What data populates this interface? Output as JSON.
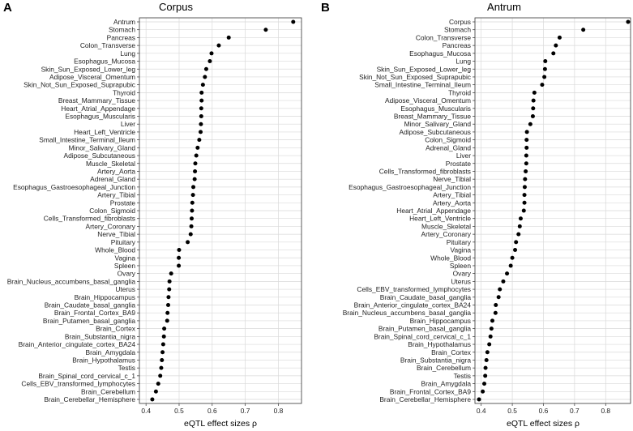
{
  "figure": {
    "panels": [
      {
        "letter": "A",
        "title": "Corpus"
      },
      {
        "letter": "B",
        "title": "Antrum"
      }
    ]
  },
  "chart_data": [
    {
      "type": "scatter",
      "panel": "A",
      "title": "Corpus",
      "xlabel": "eQTL effect sizes ρ",
      "ylabel": "",
      "xlim": [
        0.38,
        0.87
      ],
      "xticks": [
        "0.4",
        "0.5",
        "0.6",
        "0.7",
        "0.8"
      ],
      "xtick_values": [
        0.4,
        0.5,
        0.6,
        0.7,
        0.8
      ],
      "grid": true,
      "categories": [
        "Antrum",
        "Stomach",
        "Pancreas",
        "Colon_Transverse",
        "Lung",
        "Esophagus_Mucosa",
        "Skin_Sun_Exposed_Lower_leg",
        "Adipose_Visceral_Omentum",
        "Skin_Not_Sun_Exposed_Suprapubic",
        "Thyroid",
        "Breast_Mammary_Tissue",
        "Heart_Atrial_Appendage",
        "Esophagus_Muscularis",
        "Liver",
        "Heart_Left_Ventricle",
        "Small_Intestine_Terminal_Ileum",
        "Minor_Salivary_Gland",
        "Adipose_Subcutaneous",
        "Muscle_Skeletal",
        "Artery_Aorta",
        "Adrenal_Gland",
        "Esophagus_Gastroesophageal_Junction",
        "Artery_Tibial",
        "Prostate",
        "Colon_Sigmoid",
        "Cells_Transformed_fibroblasts",
        "Artery_Coronary",
        "Nerve_Tibial",
        "Pituitary",
        "Whole_Blood",
        "Vagina",
        "Spleen",
        "Ovary",
        "Brain_Nucleus_accumbens_basal_ganglia",
        "Uterus",
        "Brain_Hippocampus",
        "Brain_Caudate_basal_ganglia",
        "Brain_Frontal_Cortex_BA9",
        "Brain_Putamen_basal_ganglia",
        "Brain_Cortex",
        "Brain_Substantia_nigra",
        "Brain_Anterior_cingulate_cortex_BA24",
        "Brain_Amygdala",
        "Brain_Hypothalamus",
        "Testis",
        "Brain_Spinal_cord_cervical_c_1",
        "Cells_EBV_transformed_lymphocytes",
        "Brain_Cerebellum",
        "Brain_Cerebellar_Hemisphere"
      ],
      "values": [
        0.845,
        0.762,
        0.65,
        0.62,
        0.598,
        0.593,
        0.582,
        0.578,
        0.572,
        0.568,
        0.568,
        0.567,
        0.567,
        0.566,
        0.565,
        0.561,
        0.556,
        0.552,
        0.549,
        0.548,
        0.547,
        0.543,
        0.542,
        0.54,
        0.539,
        0.538,
        0.537,
        0.535,
        0.526,
        0.5,
        0.499,
        0.499,
        0.476,
        0.471,
        0.47,
        0.468,
        0.467,
        0.465,
        0.464,
        0.455,
        0.454,
        0.452,
        0.45,
        0.448,
        0.446,
        0.443,
        0.437,
        0.43,
        0.419
      ]
    },
    {
      "type": "scatter",
      "panel": "B",
      "title": "Antrum",
      "xlabel": "eQTL effect sizes ρ",
      "ylabel": "",
      "xlim": [
        0.38,
        0.88
      ],
      "xticks": [
        "0.4",
        "0.5",
        "0.6",
        "0.7",
        "0.8"
      ],
      "xtick_values": [
        0.4,
        0.5,
        0.6,
        0.7,
        0.8
      ],
      "grid": true,
      "categories": [
        "Corpus",
        "Stomach",
        "Colon_Transverse",
        "Pancreas",
        "Esophagus_Mucosa",
        "Lung",
        "Skin_Sun_Exposed_Lower_leg",
        "Skin_Not_Sun_Exposed_Suprapubic",
        "Small_Intestine_Terminal_Ileum",
        "Thyroid",
        "Adipose_Visceral_Omentum",
        "Esophagus_Muscularis",
        "Breast_Mammary_Tissue",
        "Minor_Salivary_Gland",
        "Adipose_Subcutaneous",
        "Colon_Sigmoid",
        "Adrenal_Gland",
        "Liver",
        "Prostate",
        "Cells_Transformed_fibroblasts",
        "Nerve_Tibial",
        "Esophagus_Gastroesophageal_Junction",
        "Artery_Tibial",
        "Artery_Aorta",
        "Heart_Atrial_Appendage",
        "Heart_Left_Ventricle",
        "Muscle_Skeletal",
        "Artery_Coronary",
        "Pituitary",
        "Vagina",
        "Whole_Blood",
        "Spleen",
        "Ovary",
        "Uterus",
        "Cells_EBV_transformed_lymphocytes",
        "Brain_Caudate_basal_ganglia",
        "Brain_Anterior_cingulate_cortex_BA24",
        "Brain_Nucleus_accumbens_basal_ganglia",
        "Brain_Hippocampus",
        "Brain_Putamen_basal_ganglia",
        "Brain_Spinal_cord_cervical_c_1",
        "Brain_Hypothalamus",
        "Brain_Cortex",
        "Brain_Substantia_nigra",
        "Brain_Cerebellum",
        "Testis",
        "Brain_Amygdala",
        "Brain_Frontal_Cortex_BA9",
        "Brain_Cerebellar_Hemisphere"
      ],
      "values": [
        0.872,
        0.728,
        0.652,
        0.64,
        0.632,
        0.606,
        0.605,
        0.603,
        0.596,
        0.571,
        0.568,
        0.567,
        0.566,
        0.558,
        0.547,
        0.546,
        0.546,
        0.545,
        0.545,
        0.543,
        0.541,
        0.54,
        0.539,
        0.539,
        0.537,
        0.527,
        0.524,
        0.52,
        0.512,
        0.509,
        0.5,
        0.495,
        0.483,
        0.471,
        0.46,
        0.456,
        0.447,
        0.446,
        0.436,
        0.433,
        0.43,
        0.426,
        0.42,
        0.417,
        0.414,
        0.413,
        0.41,
        0.405,
        0.393
      ]
    }
  ]
}
